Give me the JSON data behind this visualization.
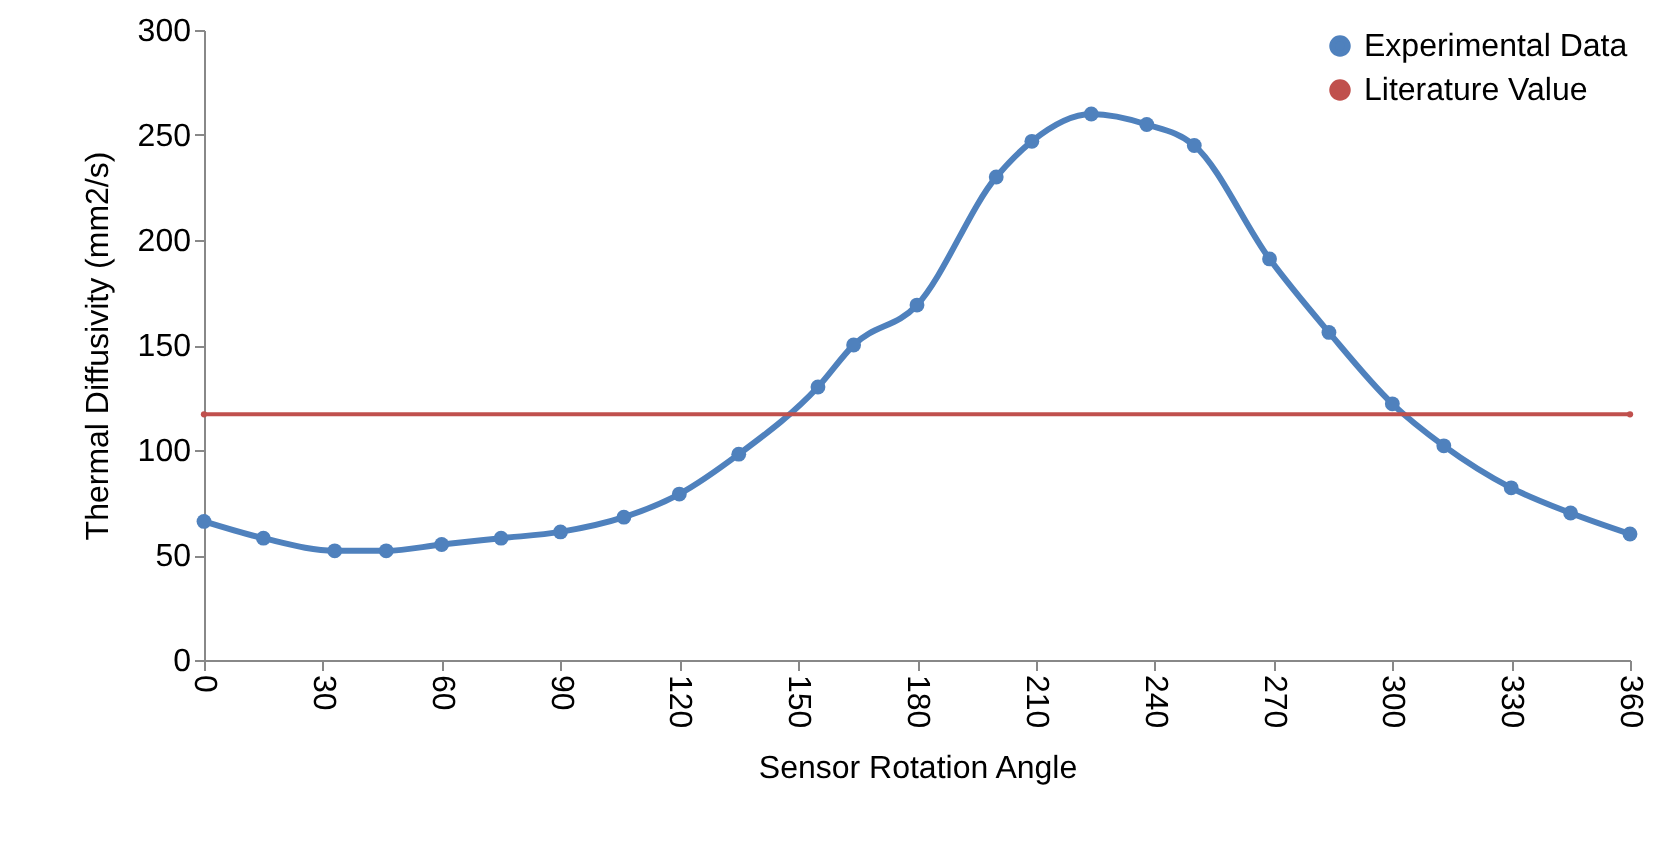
{
  "chart_data": {
    "type": "line",
    "xlabel": "Sensor Rotation Angle",
    "ylabel": "Thermal Diffusivity (mm2/s)",
    "xlim": [
      0,
      360
    ],
    "xticks": [
      0,
      30,
      60,
      90,
      120,
      150,
      180,
      210,
      240,
      270,
      300,
      330,
      360
    ],
    "ylim": [
      0,
      300
    ],
    "yticks": [
      0,
      50,
      100,
      150,
      200,
      250,
      300
    ],
    "grid": false,
    "legend": "top right",
    "marker": "circle",
    "line_style": "solid",
    "series": [
      {
        "name": "Experimental Data",
        "color": "#4f81bd",
        "x": [
          0,
          15,
          33,
          46,
          60,
          75,
          90,
          106,
          120,
          135,
          155,
          164,
          180,
          200,
          209,
          224,
          238,
          250,
          269,
          284,
          300,
          313,
          330,
          345,
          360
        ],
        "values": [
          66,
          58,
          52,
          52,
          55,
          58,
          61,
          68,
          79,
          98,
          130,
          150,
          169,
          230,
          247,
          260,
          255,
          245,
          191,
          156,
          122,
          102,
          82,
          70,
          60
        ]
      },
      {
        "name": "Literature Value",
        "color": "#c0504d",
        "x": [
          0,
          360
        ],
        "values": [
          117,
          117
        ]
      }
    ]
  }
}
